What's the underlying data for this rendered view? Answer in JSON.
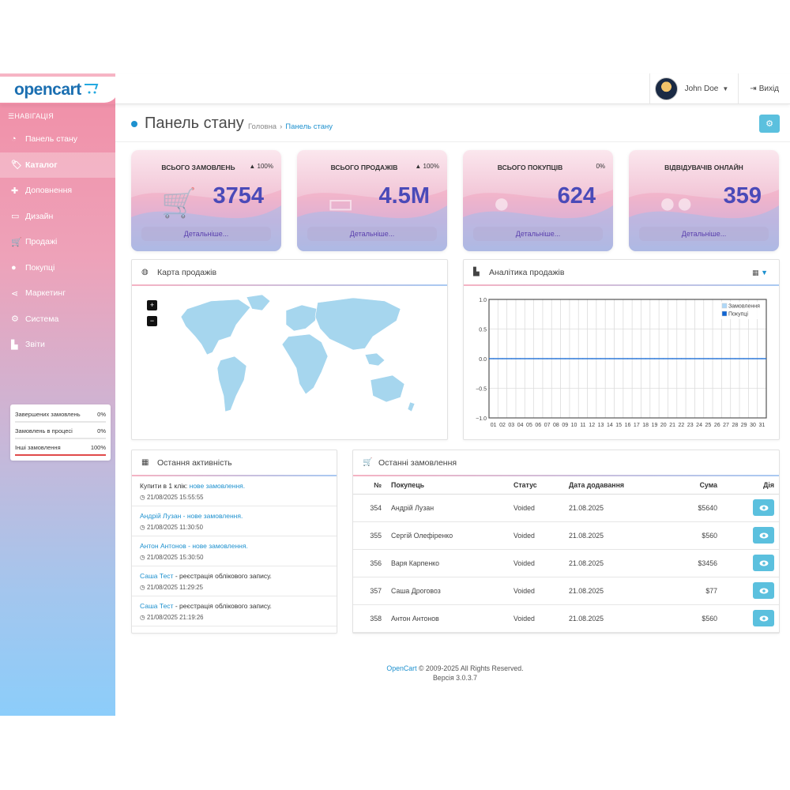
{
  "header": {
    "logo_text": "opencart",
    "user_name": "John Doe",
    "logout_label": "Вихід"
  },
  "sidebar": {
    "heading": "НАВІГАЦІЯ",
    "items": [
      {
        "label": "Панель стану",
        "icon": "dashboard-icon"
      },
      {
        "label": "Каталог",
        "icon": "tags-icon"
      },
      {
        "label": "Доповнення",
        "icon": "puzzle-icon"
      },
      {
        "label": "Дизайн",
        "icon": "monitor-icon"
      },
      {
        "label": "Продажі",
        "icon": "cart-icon"
      },
      {
        "label": "Покупці",
        "icon": "user-icon"
      },
      {
        "label": "Маркетинг",
        "icon": "share-icon"
      },
      {
        "label": "Система",
        "icon": "gear-icon"
      },
      {
        "label": "Звіти",
        "icon": "chart-icon"
      }
    ],
    "stats": [
      {
        "label": "Завершених замовлень",
        "value": "0%"
      },
      {
        "label": "Замовлень в процесі",
        "value": "0%"
      },
      {
        "label": "Інші замовлення",
        "value": "100%"
      }
    ]
  },
  "page": {
    "title": "Панель стану",
    "breadcrumb_home": "Головна",
    "breadcrumb_current": "Панель стану"
  },
  "tiles": [
    {
      "title": "ВСЬОГО ЗАМОВЛЕНЬ",
      "pct": "100%",
      "value": "3754",
      "link": "Детальніше...",
      "icon": "cart-icon"
    },
    {
      "title": "ВСЬОГО ПРОДАЖІВ",
      "pct": "100%",
      "value": "4.5M",
      "link": "Детальніше...",
      "icon": "credit-card-icon"
    },
    {
      "title": "ВСЬОГО ПОКУПЦІВ",
      "pct": "0%",
      "value": "624",
      "link": "Детальніше...",
      "icon": "user-icon"
    },
    {
      "title": "ВІДВІДУВАЧІВ ОНЛАЙН",
      "pct": "",
      "value": "359",
      "link": "Детальніше...",
      "icon": "users-icon"
    }
  ],
  "map": {
    "title": "Карта продажів",
    "zoom_in": "+",
    "zoom_out": "−"
  },
  "analytics": {
    "title": "Аналітика продажів"
  },
  "chart_data": {
    "type": "line",
    "x": [
      "01",
      "02",
      "03",
      "04",
      "05",
      "06",
      "07",
      "08",
      "09",
      "10",
      "11",
      "12",
      "13",
      "14",
      "15",
      "16",
      "17",
      "18",
      "19",
      "20",
      "21",
      "22",
      "23",
      "24",
      "25",
      "26",
      "27",
      "28",
      "29",
      "30",
      "31"
    ],
    "series": [
      {
        "name": "Замовлення",
        "values": [
          0,
          0,
          0,
          0,
          0,
          0,
          0,
          0,
          0,
          0,
          0,
          0,
          0,
          0,
          0,
          0,
          0,
          0,
          0,
          0,
          0,
          0,
          0,
          0,
          0,
          0,
          0,
          0,
          0,
          0,
          0
        ],
        "color": "#afd8f8"
      },
      {
        "name": "Покупці",
        "values": [
          0,
          0,
          0,
          0,
          0,
          0,
          0,
          0,
          0,
          0,
          0,
          0,
          0,
          0,
          0,
          0,
          0,
          0,
          0,
          0,
          0,
          0,
          0,
          0,
          0,
          0,
          0,
          0,
          0,
          0,
          0
        ],
        "color": "#1065d2"
      }
    ],
    "yticks": [
      "1.0",
      "0.5",
      "0.0",
      "−0.5",
      "−1.0"
    ],
    "ylim": [
      -1,
      1
    ],
    "grid": true,
    "legend": "top-right"
  },
  "activity": {
    "title": "Остання активність",
    "items": [
      {
        "lead": "Купити в 1 клік: ",
        "lead_link": false,
        "action": "нове замовлення.",
        "action_link": true,
        "date": "21/08/2025 15:55:55"
      },
      {
        "lead": "Андрій Лузан",
        "lead_link": true,
        "action": " - нове замовлення.",
        "action_link": true,
        "date": "21/08/2025 11:30:50"
      },
      {
        "lead": "Антон Антонов",
        "lead_link": true,
        "action": " - нове замовлення.",
        "action_link": true,
        "date": "21/08/2025 15:30:50"
      },
      {
        "lead": "Саша Тест",
        "lead_link": true,
        "action": " - реєстрація облікового запису.",
        "action_link": false,
        "date": "21/08/2025 11:29:25"
      },
      {
        "lead": "Саша Тест",
        "lead_link": true,
        "action": " - реєстрація облікового запису.",
        "action_link": false,
        "date": "21/08/2025 21:19:26"
      }
    ]
  },
  "orders": {
    "title": "Останні замовлення",
    "columns": [
      "№",
      "Покупець",
      "Статус",
      "Дата додавання",
      "Сума",
      "Дія"
    ],
    "rows": [
      [
        "354",
        "Андрій Лузан",
        "Voided",
        "21.08.2025",
        "$5640"
      ],
      [
        "355",
        "Сергій Олефіренко",
        "Voided",
        "21.08.2025",
        "$560"
      ],
      [
        "356",
        "Варя Карпенко",
        "Voided",
        "21.08.2025",
        "$3456"
      ],
      [
        "357",
        "Саша Дроговоз",
        "Voided",
        "21.08.2025",
        "$77"
      ],
      [
        "358",
        "Антон Антонов",
        "Voided",
        "21.08.2025",
        "$560"
      ]
    ]
  },
  "footer": {
    "brand": "OpenCart",
    "copy": " © 2009-2025 All Rights Reserved.",
    "version": "Версія 3.0.3.7"
  },
  "colors": {
    "accent": "#1e91cf",
    "info": "#5bc0de",
    "tile_number": "#4a4ab8"
  }
}
